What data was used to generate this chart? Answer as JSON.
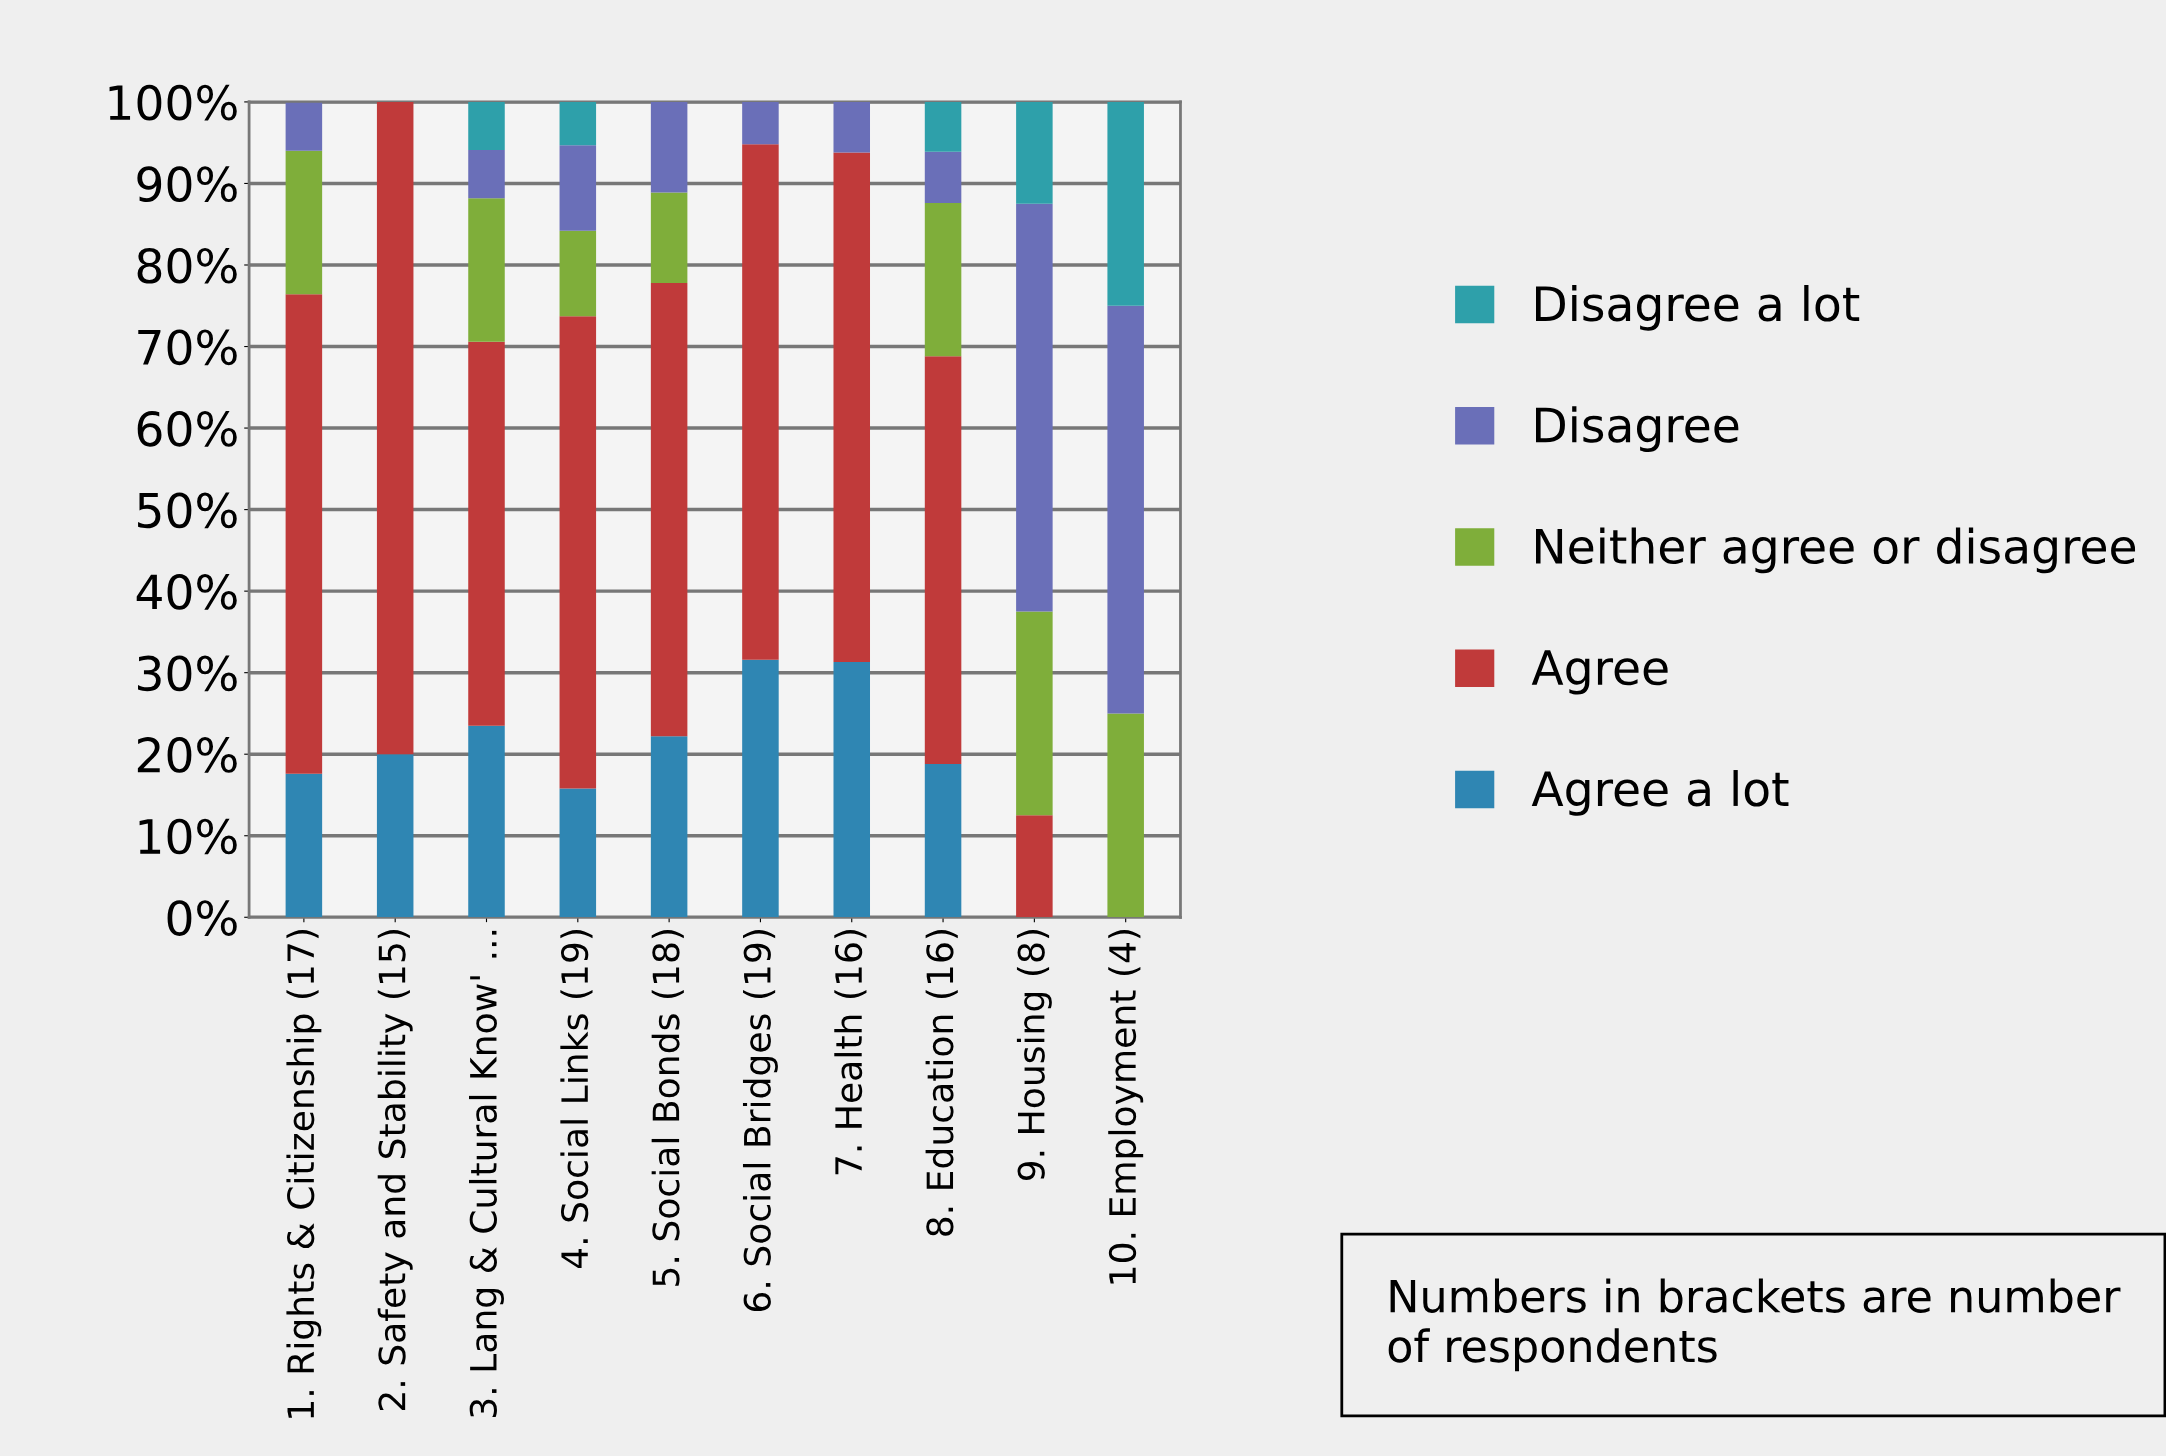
{
  "chart_data": {
    "type": "bar",
    "stacked": true,
    "categories": [
      "1. Rights & Citizenship (17)",
      "2. Safety and Stability (15)",
      "3. Lang & Cultural Know' ...",
      "4. Social Links (19)",
      "5. Social Bonds (18)",
      "6. Social Bridges (19)",
      "7. Health (16)",
      "8. Education (16)",
      "9. Housing (8)",
      "10. Employment (4)"
    ],
    "series": [
      {
        "name": "Agree a lot",
        "color": "#2f86b3",
        "values": [
          17.6,
          20,
          23.5,
          15.8,
          22.2,
          31.6,
          31.3,
          18.8,
          0,
          0
        ]
      },
      {
        "name": "Agree",
        "color": "#c03a3a",
        "values": [
          58.8,
          80,
          47.1,
          57.9,
          55.6,
          63.2,
          62.5,
          50,
          12.5,
          0
        ]
      },
      {
        "name": "Neither agree or disagree",
        "color": "#7fae3a",
        "values": [
          17.6,
          0,
          17.6,
          10.5,
          11.1,
          0,
          0,
          18.8,
          25,
          25
        ]
      },
      {
        "name": "Disagree",
        "color": "#6a6fb8",
        "values": [
          5.9,
          0,
          5.9,
          10.5,
          11.1,
          5.3,
          6.3,
          6.3,
          50,
          50
        ]
      },
      {
        "name": "Disagree a lot",
        "color": "#2ea0aa",
        "values": [
          0,
          0,
          5.9,
          5.3,
          0,
          0,
          0,
          6.3,
          12.5,
          25
        ]
      }
    ],
    "ylim": [
      0,
      100
    ],
    "yticks": [
      {
        "value": 0,
        "label": "0%"
      },
      {
        "value": 10,
        "label": "10%"
      },
      {
        "value": 20,
        "label": "20%"
      },
      {
        "value": 30,
        "label": "30%"
      },
      {
        "value": 40,
        "label": "40%"
      },
      {
        "value": 50,
        "label": "50%"
      },
      {
        "value": 60,
        "label": "60%"
      },
      {
        "value": 70,
        "label": "70%"
      },
      {
        "value": 80,
        "label": "80%"
      },
      {
        "value": 90,
        "label": "90%"
      },
      {
        "value": 100,
        "label": "100%"
      }
    ],
    "grid": "y",
    "legend": "right",
    "annotations": [
      "Numbers in brackets are number of respondents"
    ]
  }
}
